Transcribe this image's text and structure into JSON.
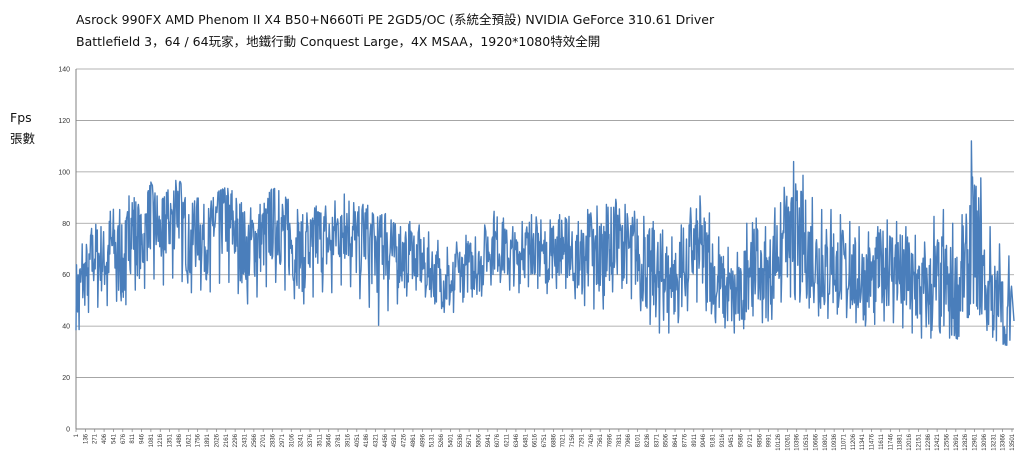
{
  "chart_data": {
    "type": "line",
    "title": "Asrock 990FX AMD Phenom II X4 B50+N660Ti PE 2GD5/OC (系統全預設) NVIDIA GeForce 310.61 Driver",
    "subtitle": "Battlefield 3，64 / 64玩家，地鐵行動 Conquest Large，4X MSAA，1920*1080特效全開",
    "ylabel": [
      "Fps",
      "張數"
    ],
    "xlabel": "",
    "ylim": [
      0,
      140
    ],
    "yticks": [
      0,
      20,
      40,
      60,
      80,
      100,
      120,
      140
    ],
    "xlim": [
      1,
      13530
    ],
    "xticks": [
      1,
      136,
      271,
      406,
      541,
      676,
      811,
      946,
      1081,
      1216,
      1351,
      1486,
      1621,
      1756,
      1891,
      2026,
      2161,
      2296,
      2431,
      2566,
      2701,
      2836,
      2971,
      3106,
      3241,
      3376,
      3511,
      3646,
      3781,
      3916,
      4051,
      4186,
      4321,
      4456,
      4591,
      4726,
      4861,
      4996,
      5131,
      5266,
      5401,
      5536,
      5671,
      5806,
      5941,
      6076,
      6211,
      6346,
      6481,
      6616,
      6751,
      6886,
      7021,
      7156,
      7291,
      7426,
      7561,
      7696,
      7831,
      7966,
      8101,
      8236,
      8371,
      8506,
      8641,
      8776,
      8911,
      9046,
      9181,
      9316,
      9451,
      9586,
      9721,
      9856,
      9991,
      10126,
      10261,
      10396,
      10531,
      10666,
      10801,
      10936,
      11071,
      11206,
      11341,
      11476,
      11611,
      11746,
      11881,
      12016,
      12151,
      12286,
      12421,
      12556,
      12691,
      12826,
      12961,
      13096,
      13231,
      13366,
      13501
    ],
    "grid": true,
    "line_color": "#4a7ebb",
    "series": [
      {
        "name": "",
        "x_step": 135,
        "y": [
          52,
          60,
          68,
          65,
          72,
          62,
          80,
          70,
          85,
          75,
          82,
          88,
          70,
          78,
          72,
          80,
          82,
          78,
          70,
          73,
          75,
          80,
          78,
          72,
          68,
          70,
          75,
          72,
          78,
          80,
          72,
          76,
          70,
          74,
          68,
          66,
          70,
          64,
          62,
          58,
          55,
          60,
          64,
          62,
          70,
          72,
          68,
          66,
          70,
          72,
          68,
          70,
          72,
          68,
          65,
          70,
          66,
          72,
          74,
          70,
          68,
          62,
          60,
          58,
          56,
          64,
          70,
          68,
          60,
          55,
          52,
          50,
          66,
          60,
          58,
          70,
          74,
          72,
          70,
          66,
          62,
          64,
          62,
          60,
          58,
          58,
          62,
          64,
          60,
          58,
          54,
          52,
          56,
          55,
          52,
          62,
          72,
          60,
          50,
          46,
          42
        ],
        "min": [
          36,
          44,
          48,
          46,
          52,
          45,
          55,
          52,
          60,
          55,
          58,
          60,
          52,
          55,
          52,
          56,
          58,
          55,
          48,
          50,
          54,
          58,
          55,
          52,
          48,
          50,
          54,
          52,
          55,
          58,
          50,
          52,
          38,
          45,
          48,
          50,
          55,
          52,
          50,
          46,
          44,
          48,
          52,
          50,
          55,
          58,
          55,
          52,
          55,
          56,
          52,
          54,
          56,
          52,
          48,
          48,
          44,
          52,
          56,
          52,
          48,
          42,
          38,
          36,
          40,
          44,
          50,
          48,
          42,
          40,
          38,
          36,
          45,
          42,
          40,
          48,
          52,
          50,
          48,
          45,
          42,
          45,
          44,
          42,
          40,
          40,
          42,
          42,
          40,
          38,
          36,
          34,
          38,
          36,
          34,
          40,
          50,
          40,
          35,
          33,
          32
        ],
        "max": [
          68,
          74,
          80,
          78,
          88,
          84,
          94,
          84,
          96,
          88,
          94,
          98,
          86,
          90,
          86,
          92,
          94,
          92,
          86,
          86,
          88,
          94,
          92,
          88,
          84,
          84,
          88,
          86,
          90,
          92,
          86,
          88,
          82,
          84,
          80,
          78,
          82,
          78,
          76,
          72,
          70,
          74,
          76,
          74,
          82,
          86,
          80,
          78,
          82,
          84,
          80,
          82,
          84,
          82,
          80,
          88,
          86,
          88,
          90,
          86,
          84,
          82,
          80,
          76,
          74,
          82,
          88,
          92,
          80,
          72,
          70,
          68,
          86,
          80,
          78,
          90,
          96,
          108,
          94,
          88,
          84,
          86,
          82,
          80,
          78,
          76,
          80,
          82,
          80,
          78,
          74,
          72,
          88,
          84,
          78,
          86,
          125,
          84,
          76,
          70,
          66
        ]
      }
    ]
  }
}
